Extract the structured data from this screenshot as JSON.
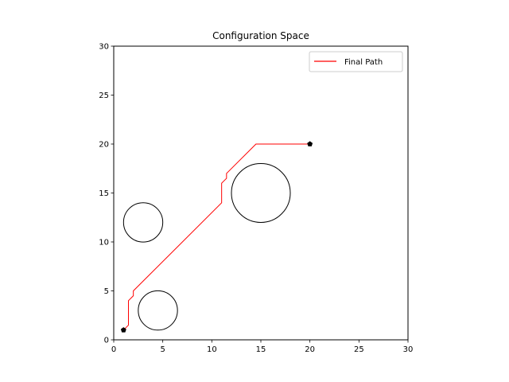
{
  "chart_data": {
    "type": "line",
    "title": "Configuration Space",
    "xlabel": "",
    "ylabel": "",
    "xlim": [
      0,
      30
    ],
    "ylim": [
      0,
      30
    ],
    "xticks": [
      0,
      5,
      10,
      15,
      20,
      25,
      30
    ],
    "yticks": [
      0,
      5,
      10,
      15,
      20,
      25,
      30
    ],
    "grid": false,
    "legend": {
      "placement": "top-right",
      "entries": [
        "Final Path"
      ]
    },
    "series": [
      {
        "name": "Final Path",
        "color": "#ff0000",
        "points": [
          [
            1,
            1
          ],
          [
            1.5,
            1.5
          ],
          [
            1.5,
            4
          ],
          [
            2,
            4.5
          ],
          [
            2,
            5
          ],
          [
            11,
            14
          ],
          [
            11,
            16
          ],
          [
            11.5,
            16.5
          ],
          [
            11.5,
            17
          ],
          [
            14.5,
            20
          ],
          [
            20,
            20
          ]
        ]
      }
    ],
    "obstacles": [
      {
        "cx": 3,
        "cy": 12,
        "r": 2
      },
      {
        "cx": 4.5,
        "cy": 3,
        "r": 2
      },
      {
        "cx": 15,
        "cy": 15,
        "r": 3
      }
    ],
    "endpoints": [
      {
        "label": "start",
        "x": 1,
        "y": 1
      },
      {
        "label": "goal",
        "x": 20,
        "y": 20
      }
    ],
    "colors": {
      "path": "#ff0000",
      "obstacle_edge": "#000000",
      "marker": "#000000"
    }
  }
}
